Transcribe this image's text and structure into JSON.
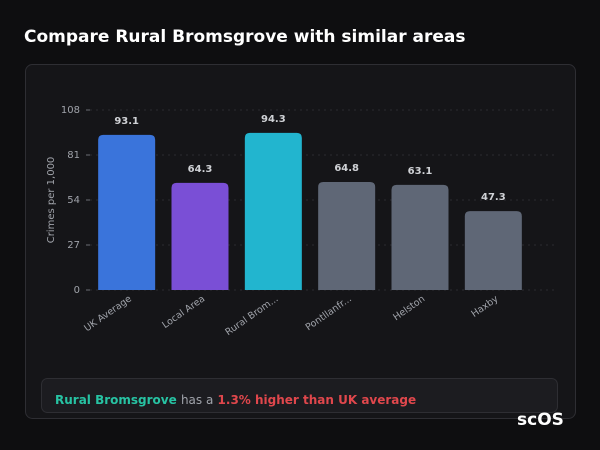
{
  "chart_data": {
    "type": "bar",
    "title": "Compare Rural Bromsgrove with similar areas",
    "y_label": "Crimes per 1,000",
    "categories": [
      "UK Average",
      "Local Area",
      "Rural Brom...",
      "Pontllanfr...",
      "Helston",
      "Haxby"
    ],
    "values": [
      93.1,
      64.3,
      94.3,
      64.8,
      63.1,
      47.3
    ],
    "colors": [
      "#3a74db",
      "#7a4fd6",
      "#22b5cf",
      "#5f6776",
      "#5f6776",
      "#5f6776"
    ],
    "ylim": [
      0,
      108
    ],
    "yticks": [
      0,
      27,
      54,
      81,
      108
    ],
    "grid": true
  },
  "note": {
    "area": "Rural Bromsgrove",
    "text": "has a",
    "highlight": "1.3% higher than UK average"
  },
  "logo": "scOS"
}
